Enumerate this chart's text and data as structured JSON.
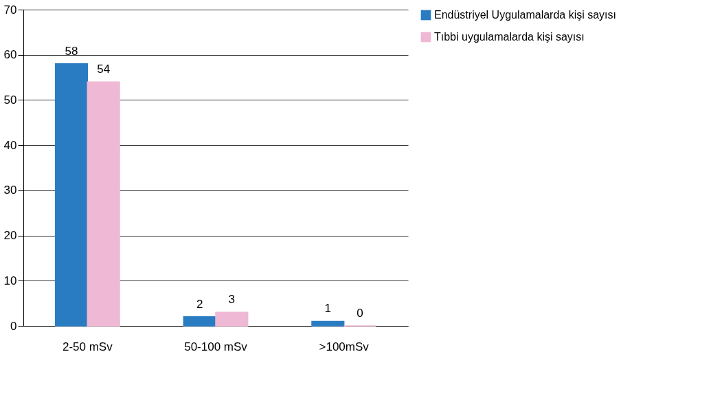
{
  "chart_data": {
    "type": "bar",
    "categories": [
      "2-50 mSv",
      "50-100 mSv",
      ">100mSv"
    ],
    "series": [
      {
        "name": "Endüstriyel Uygulamalarda kişi sayısı",
        "color": "#2a7cc2",
        "values": [
          58,
          2,
          1
        ]
      },
      {
        "name": "Tıbbi uygulamalarda kişi sayısı",
        "color": "#efb8d5",
        "values": [
          54,
          3,
          0
        ]
      }
    ],
    "ylim": [
      0,
      70
    ],
    "yticks": [
      0,
      10,
      20,
      30,
      40,
      50,
      60,
      70
    ],
    "grid": "y",
    "legend": "right",
    "data_labels": true
  }
}
